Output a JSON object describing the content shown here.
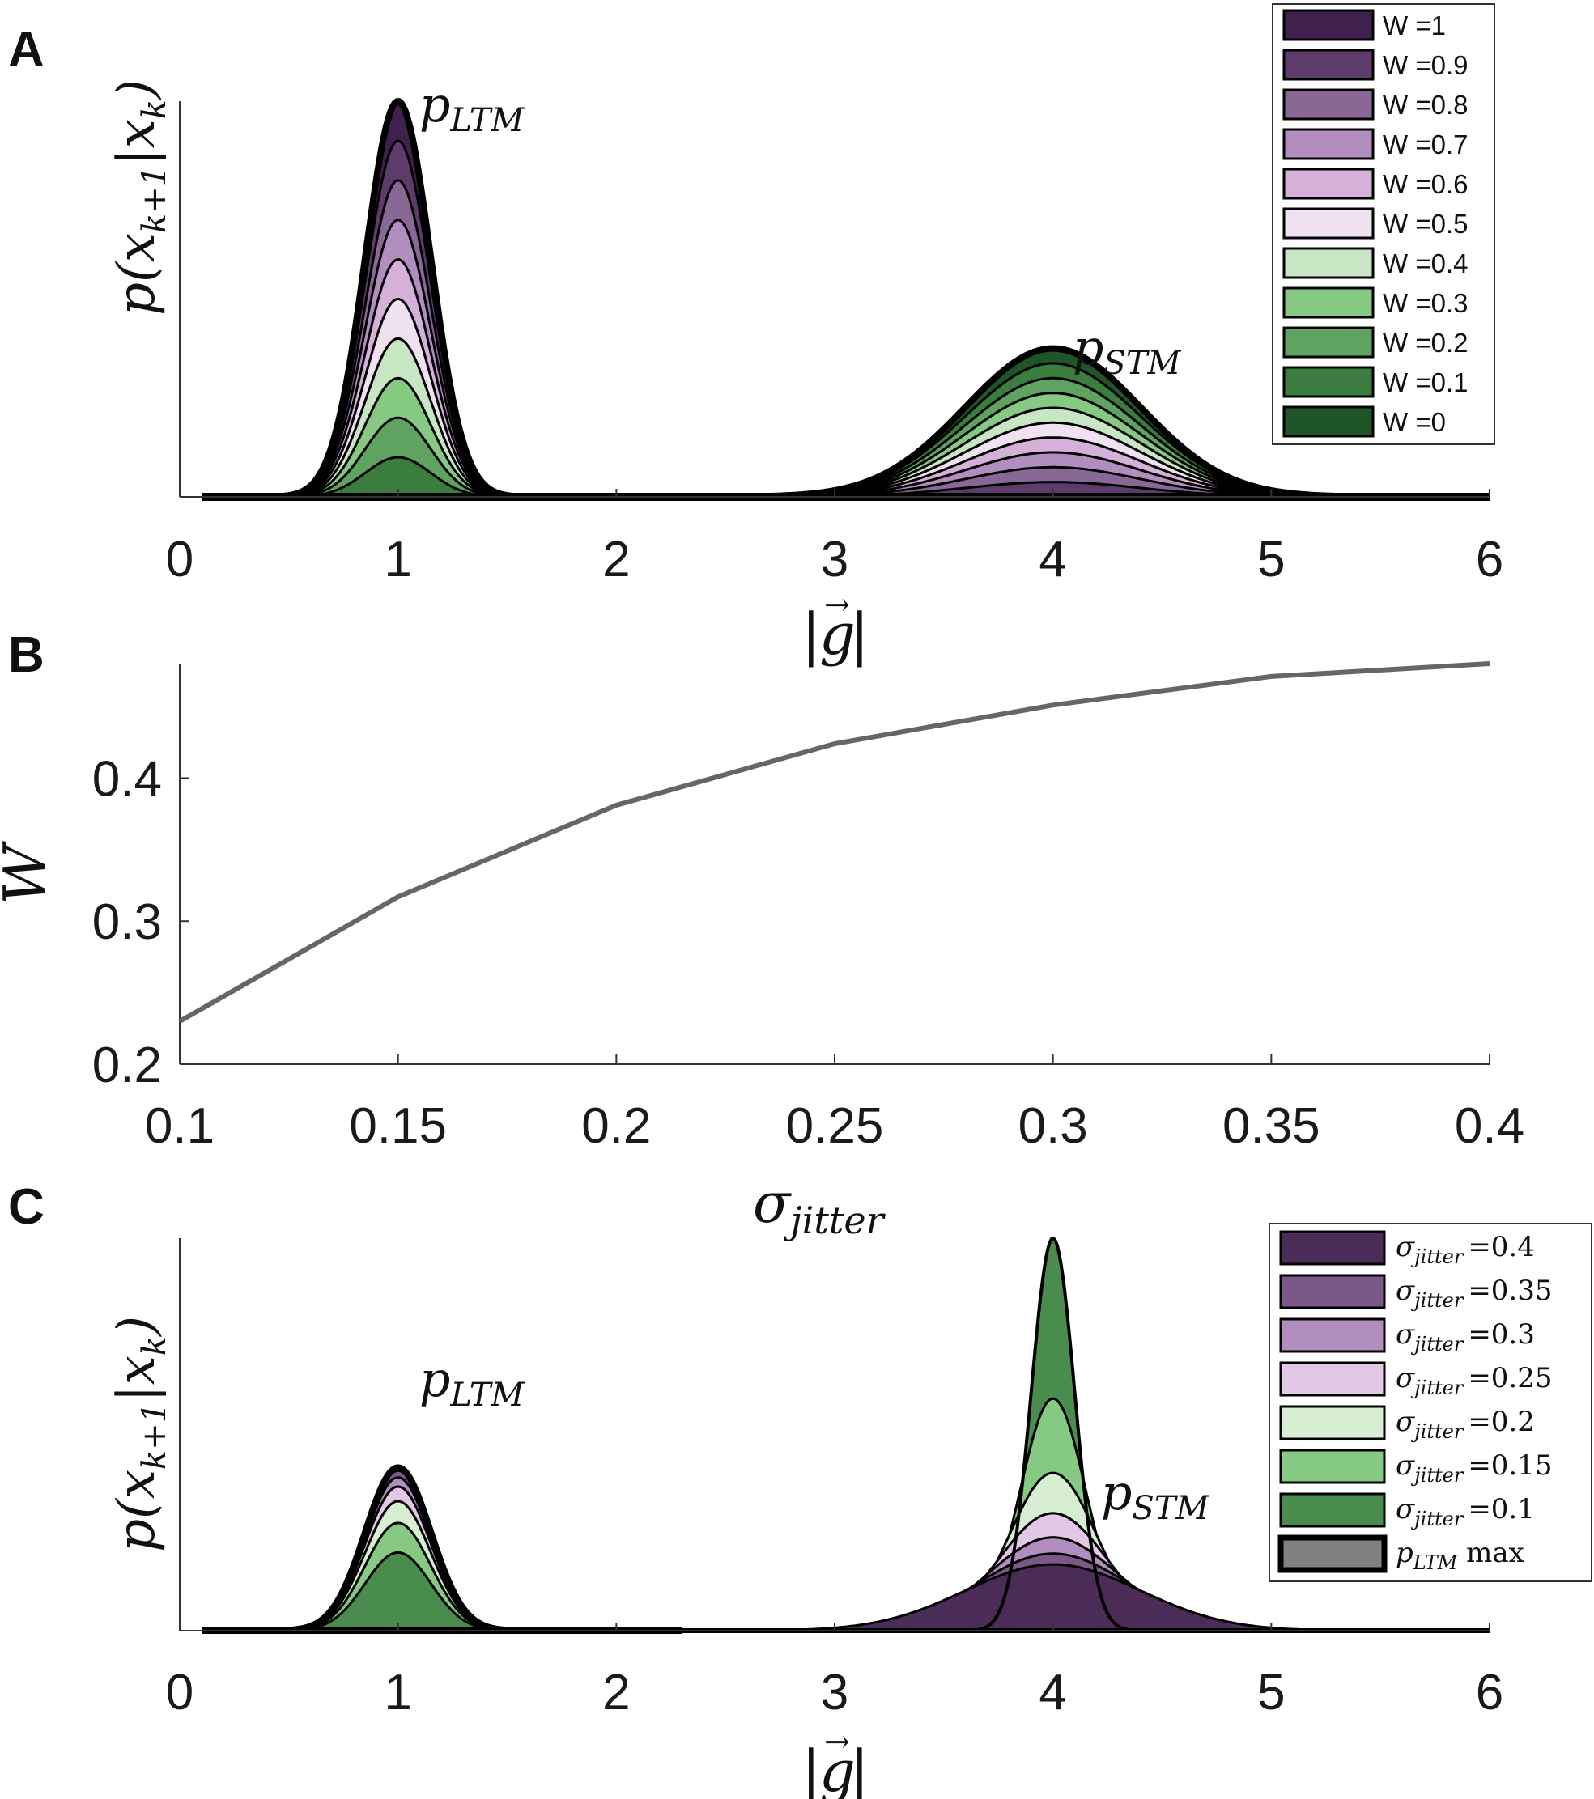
{
  "panels": {
    "a": {
      "letter": "A",
      "ylabel": "p(x_{k+1}|x_k)",
      "ylabel_display": "p(xk+1|xk)",
      "xlabel": "|g⃗|",
      "annotations": {
        "ltm": "pLTM",
        "stm": "pSTM"
      }
    },
    "b": {
      "letter": "B"
    },
    "c": {
      "letter": "C",
      "ylabel_display": "p(xk+1|xk)",
      "xlabel": "|g⃗|",
      "annotations": {
        "ltm": "pLTM",
        "stm": "pSTM"
      }
    }
  },
  "chart_data": [
    {
      "id": "A",
      "type": "area",
      "title": "",
      "xlabel": "|g⃗|",
      "ylabel": "p(x_{k+1}|x_k)",
      "xlim": [
        0,
        6
      ],
      "xticks": [
        "0",
        "1",
        "2",
        "3",
        "4",
        "5",
        "6"
      ],
      "x_start": 0.1,
      "ltm_mean": 1,
      "ltm_sigma": 0.15,
      "stm_mean": 4,
      "stm_sigma": 0.4,
      "legend_position": "top-right",
      "series": [
        {
          "name": "W =1",
          "W": 1,
          "color": "#40214e"
        },
        {
          "name": "W =0.9",
          "W": 0.9,
          "color": "#5d3b6a"
        },
        {
          "name": "W =0.8",
          "W": 0.8,
          "color": "#8a6896"
        },
        {
          "name": "W =0.7",
          "W": 0.7,
          "color": "#b28ec0"
        },
        {
          "name": "W =0.6",
          "W": 0.6,
          "color": "#d5b0d8"
        },
        {
          "name": "W =0.5",
          "W": 0.5,
          "color": "#f0e1f0"
        },
        {
          "name": "W =0.4",
          "W": 0.4,
          "color": "#c8e6c4"
        },
        {
          "name": "W =0.3",
          "W": 0.3,
          "color": "#86c983"
        },
        {
          "name": "W =0.2",
          "W": 0.2,
          "color": "#5ea460"
        },
        {
          "name": "W =0.1",
          "W": 0.1,
          "color": "#3a7d3f"
        },
        {
          "name": "W =0",
          "W": 0,
          "color": "#1f5529"
        }
      ]
    },
    {
      "id": "B",
      "type": "line",
      "title": "",
      "xlabel": "σjitter",
      "ylabel": "W",
      "xlim": [
        0.1,
        0.4
      ],
      "ylim": [
        0.2,
        0.48
      ],
      "xticks": [
        "0.1",
        "0.15",
        "0.2",
        "0.25",
        "0.3",
        "0.35",
        "0.4"
      ],
      "yticks": [
        "0.2",
        "0.3",
        "0.4"
      ],
      "x": [
        0.1,
        0.15,
        0.2,
        0.25,
        0.3,
        0.35,
        0.4
      ],
      "y": [
        0.23,
        0.317,
        0.381,
        0.424,
        0.451,
        0.471,
        0.48
      ],
      "color": "#666666"
    },
    {
      "id": "C",
      "type": "area",
      "title": "",
      "xlabel": "|g⃗|",
      "ylabel": "p(x_{k+1}|x_k)",
      "xlim": [
        0,
        6
      ],
      "xticks": [
        "0",
        "1",
        "2",
        "3",
        "4",
        "5",
        "6"
      ],
      "x_start": 0.1,
      "ltm_mean": 1,
      "ltm_sigma": 0.15,
      "stm_mean": 4,
      "legend_position": "top-right",
      "series": [
        {
          "name": "σjitter =0.4",
          "sub": "jitter",
          "value": "=0.4",
          "sigma": 0.4,
          "W": 0.48,
          "color": "#4b2c56"
        },
        {
          "name": "σjitter =0.35",
          "sub": "jitter",
          "value": "=0.35",
          "sigma": 0.35,
          "W": 0.471,
          "color": "#7a5888"
        },
        {
          "name": "σjitter =0.3",
          "sub": "jitter",
          "value": "=0.3",
          "sigma": 0.3,
          "W": 0.451,
          "color": "#b28ec0"
        },
        {
          "name": "σjitter =0.25",
          "sub": "jitter",
          "value": "=0.25",
          "sigma": 0.25,
          "W": 0.424,
          "color": "#e3c7e6"
        },
        {
          "name": "σjitter =0.2",
          "sub": "jitter",
          "value": "=0.2",
          "sigma": 0.2,
          "W": 0.381,
          "color": "#d7eed3"
        },
        {
          "name": "σjitter =0.15",
          "sub": "jitter",
          "value": "=0.15",
          "sigma": 0.15,
          "W": 0.317,
          "color": "#86c983"
        },
        {
          "name": "σjitter =0.1",
          "sub": "jitter",
          "value": "=0.1",
          "sigma": 0.1,
          "W": 0.23,
          "color": "#4a8b4e"
        }
      ],
      "extra_legend": {
        "name": "pLTM max",
        "main": "p",
        "sub": "LTM",
        "suffix": " max",
        "color": "#808080"
      }
    }
  ]
}
